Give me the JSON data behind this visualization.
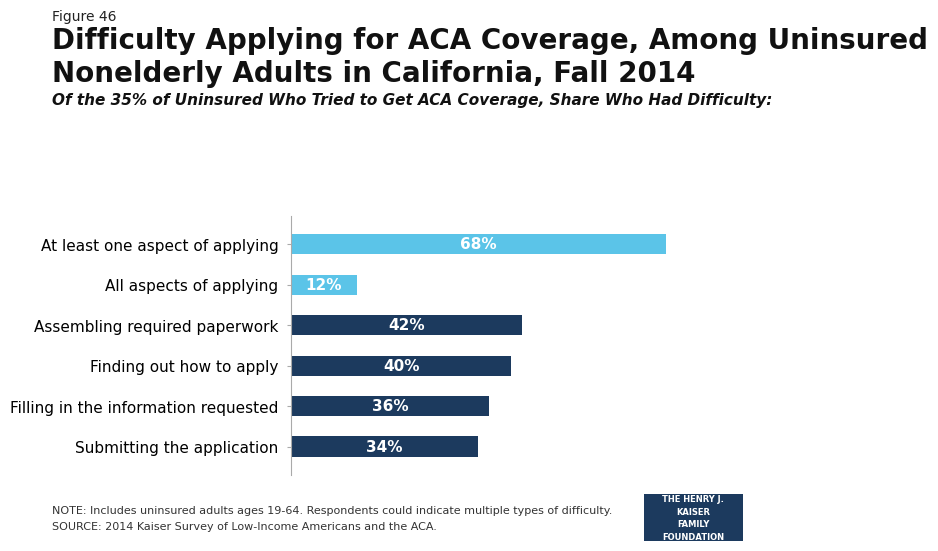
{
  "figure_label": "Figure 46",
  "title_line1": "Difficulty Applying for ACA Coverage, Among Uninsured",
  "title_line2": "Nonelderly Adults in California, Fall 2014",
  "subtitle": "Of the 35% of Uninsured Who Tried to Get ACA Coverage, Share Who Had Difficulty:",
  "categories": [
    "At least one aspect of applying",
    "All aspects of applying",
    "Assembling required paperwork",
    "Finding out how to apply",
    "Filling in the information requested",
    "Submitting the application"
  ],
  "values": [
    68,
    12,
    42,
    40,
    36,
    34
  ],
  "bar_colors": [
    "#5bc4e8",
    "#5bc4e8",
    "#1c3a5e",
    "#1c3a5e",
    "#1c3a5e",
    "#1c3a5e"
  ],
  "bar_labels": [
    "68%",
    "12%",
    "42%",
    "40%",
    "36%",
    "34%"
  ],
  "xlim": [
    0,
    80
  ],
  "note_line1": "NOTE: Includes uninsured adults ages 19-64. Respondents could indicate multiple types of difficulty.",
  "note_line2": "SOURCE: 2014 Kaiser Survey of Low-Income Americans and the ACA.",
  "logo_text": "THE HENRY J.\nKAISER\nFAMILY\nFOUNDATION",
  "background_color": "#ffffff",
  "bar_height": 0.5,
  "label_fontsize": 11,
  "value_fontsize": 11,
  "title_fontsize": 20,
  "figlabel_fontsize": 10,
  "subtitle_fontsize": 11,
  "note_fontsize": 8
}
